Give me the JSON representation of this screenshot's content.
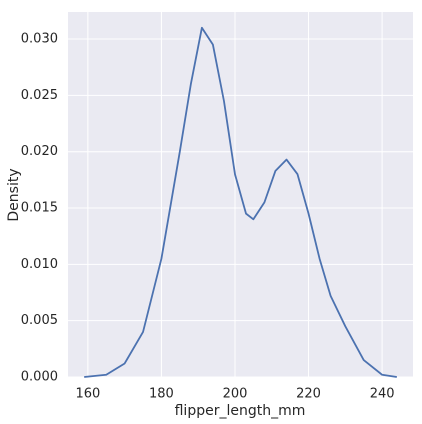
{
  "chart_data": {
    "type": "line",
    "xlabel": "flipper_length_mm",
    "ylabel": "Density",
    "x": [
      159,
      165,
      170,
      175,
      180,
      185,
      188,
      191,
      194,
      197,
      200,
      203,
      205,
      208,
      211,
      214,
      217,
      220,
      223,
      226,
      230,
      235,
      240,
      244
    ],
    "values": [
      0,
      0.0002,
      0.0012,
      0.004,
      0.0105,
      0.02,
      0.026,
      0.031,
      0.0295,
      0.0245,
      0.018,
      0.0145,
      0.014,
      0.0155,
      0.0183,
      0.0193,
      0.018,
      0.0145,
      0.0105,
      0.0072,
      0.0045,
      0.0015,
      0.0002,
      0
    ],
    "color": "#4c72b0",
    "xlim": [
      154.6,
      248.4
    ],
    "xticks": [
      160,
      180,
      200,
      220,
      240
    ],
    "ylim": [
      0,
      0.0324
    ],
    "yticks": [
      {
        "value": 0,
        "label": "0.000"
      },
      {
        "value": 0.005,
        "label": "0.005"
      },
      {
        "value": 0.01,
        "label": "0.010"
      },
      {
        "value": 0.015,
        "label": "0.015"
      },
      {
        "value": 0.02,
        "label": "0.020"
      },
      {
        "value": 0.025,
        "label": "0.025"
      },
      {
        "value": 0.03,
        "label": "0.030"
      }
    ],
    "grid": true,
    "background": "#eaeaf2"
  }
}
